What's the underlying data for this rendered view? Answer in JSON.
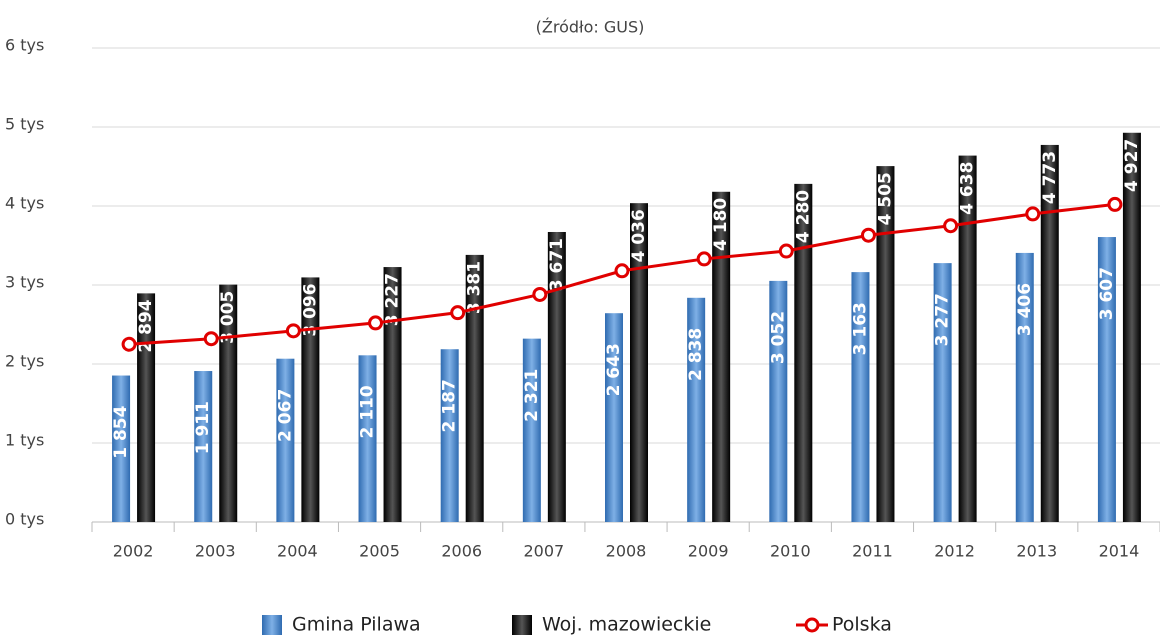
{
  "chart_data": {
    "type": "bar",
    "subtitle": "(Źródło: GUS)",
    "categories": [
      "2002",
      "2003",
      "2004",
      "2005",
      "2006",
      "2007",
      "2008",
      "2009",
      "2010",
      "2011",
      "2012",
      "2013",
      "2014"
    ],
    "series": [
      {
        "name": "Gmina Pilawa",
        "type": "bar",
        "color": "#4a86c8",
        "values": [
          1854,
          1911,
          2067,
          2110,
          2187,
          2321,
          2643,
          2838,
          3052,
          3163,
          3277,
          3406,
          3607
        ],
        "value_labels": [
          "1 854",
          "1 911",
          "2 067",
          "2 110",
          "2 187",
          "2 321",
          "2 643",
          "2 838",
          "3 052",
          "3 163",
          "3 277",
          "3 406",
          "3 607"
        ]
      },
      {
        "name": "Woj. mazowieckie",
        "type": "bar",
        "color": "#1a1a1a",
        "values": [
          2894,
          3005,
          3096,
          3227,
          3381,
          3671,
          4036,
          4180,
          4280,
          4505,
          4638,
          4773,
          4927
        ],
        "value_labels": [
          "2 894",
          "3 005",
          "3 096",
          "3 227",
          "3 381",
          "3 671",
          "4 036",
          "4 180",
          "4 280",
          "4 505",
          "4 638",
          "4 773",
          "4 927"
        ]
      },
      {
        "name": "Polska",
        "type": "line",
        "color": "#e00000",
        "values": [
          2250,
          2320,
          2420,
          2520,
          2650,
          2880,
          3180,
          3330,
          3430,
          3630,
          3750,
          3900,
          4020
        ]
      }
    ],
    "ylim": [
      0,
      6000
    ],
    "yticks": [
      {
        "value": 0,
        "label": "0 tys"
      },
      {
        "value": 1000,
        "label": "1 tys"
      },
      {
        "value": 2000,
        "label": "2 tys"
      },
      {
        "value": 3000,
        "label": "3 tys"
      },
      {
        "value": 4000,
        "label": "4 tys"
      },
      {
        "value": 5000,
        "label": "5 tys"
      },
      {
        "value": 6000,
        "label": "6 tys"
      }
    ],
    "grid": true,
    "legend": "bottom"
  }
}
